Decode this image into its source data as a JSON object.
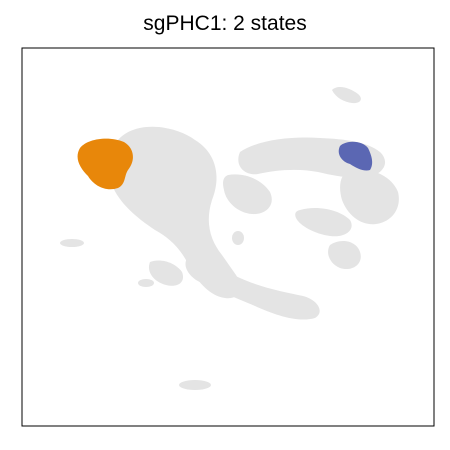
{
  "chart_data": {
    "type": "scatter",
    "title": "sgPHC1: 2 states",
    "xlabel": "",
    "ylabel": "",
    "grid": false,
    "axis_ticks": false,
    "colors": {
      "background_cells": "#e4e4e4",
      "state_1": "#e8870a",
      "state_2": "#5b67b3",
      "frame": "#000000"
    },
    "series": [
      {
        "color_key": "background_cells",
        "kind": "background"
      },
      {
        "color_key": "state_1",
        "kind": "highlight"
      },
      {
        "color_key": "state_2",
        "kind": "highlight"
      }
    ]
  }
}
